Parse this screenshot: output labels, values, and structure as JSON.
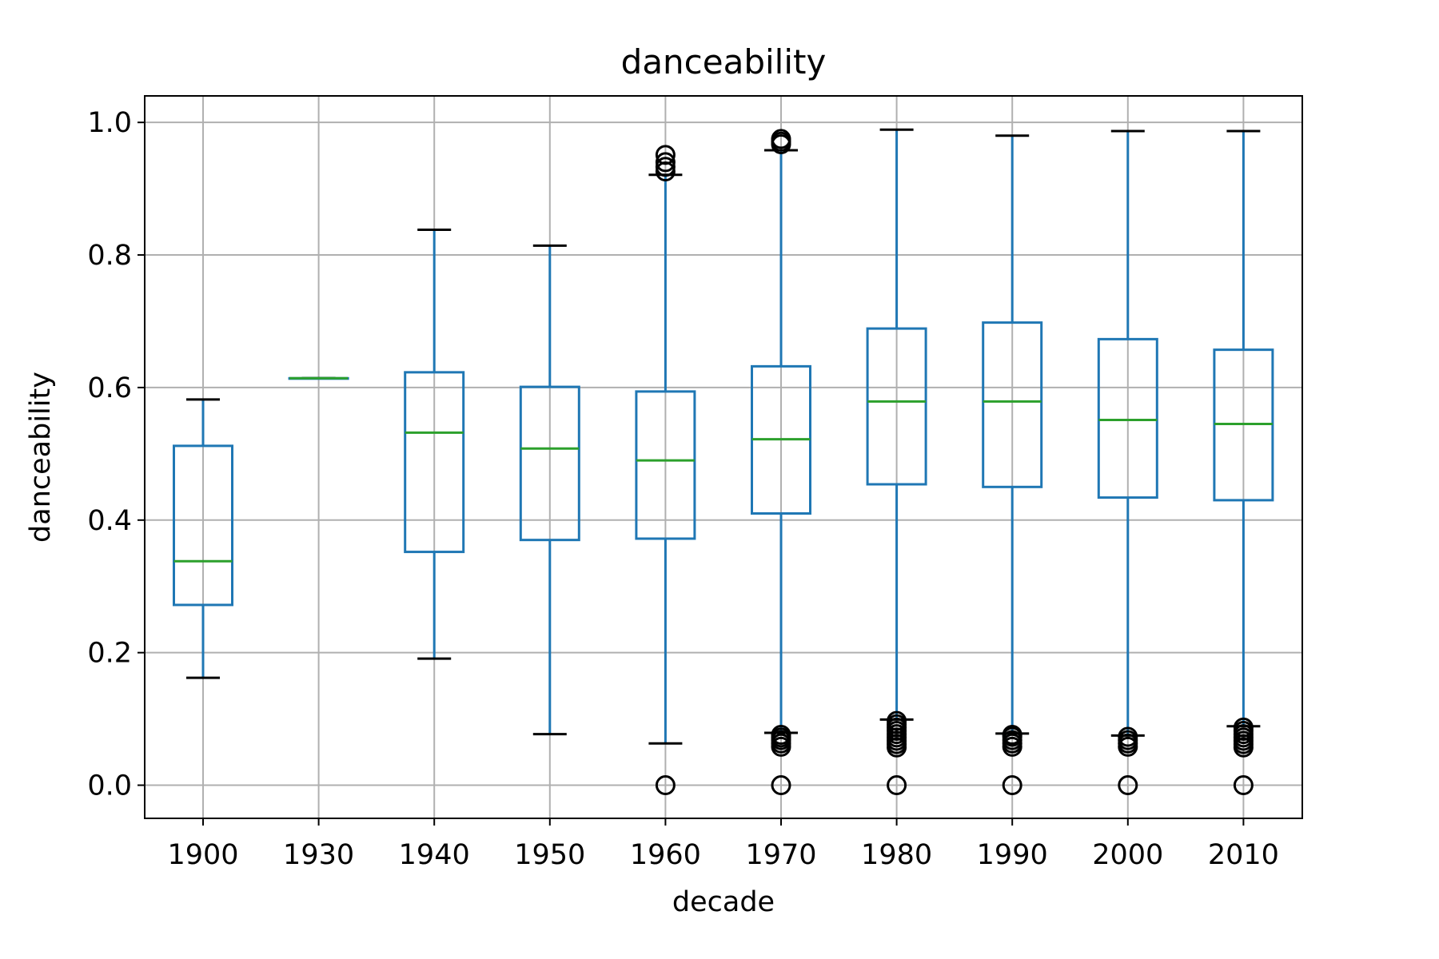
{
  "chart_data": {
    "type": "box",
    "title": "danceability",
    "xlabel": "decade",
    "ylabel": "danceability",
    "ylim": [
      -0.05,
      1.04
    ],
    "yticks": [
      "0.0",
      "0.2",
      "0.4",
      "0.6",
      "0.8",
      "1.0"
    ],
    "grid": true,
    "categories": [
      "1900",
      "1930",
      "1940",
      "1950",
      "1960",
      "1970",
      "1980",
      "1990",
      "2000",
      "2010"
    ],
    "boxes": [
      {
        "decade": "1900",
        "whisker_low": 0.162,
        "q1": 0.272,
        "median": 0.338,
        "q3": 0.512,
        "whisker_high": 0.582,
        "outliers": []
      },
      {
        "decade": "1930",
        "whisker_low": 0.614,
        "q1": 0.614,
        "median": 0.614,
        "q3": 0.614,
        "whisker_high": 0.614,
        "outliers": []
      },
      {
        "decade": "1940",
        "whisker_low": 0.191,
        "q1": 0.352,
        "median": 0.532,
        "q3": 0.623,
        "whisker_high": 0.838,
        "outliers": []
      },
      {
        "decade": "1950",
        "whisker_low": 0.077,
        "q1": 0.37,
        "median": 0.508,
        "q3": 0.601,
        "whisker_high": 0.814,
        "outliers": []
      },
      {
        "decade": "1960",
        "whisker_low": 0.063,
        "q1": 0.372,
        "median": 0.49,
        "q3": 0.594,
        "whisker_high": 0.921,
        "outliers": [
          0.0,
          0.926,
          0.933,
          0.94,
          0.951
        ]
      },
      {
        "decade": "1970",
        "whisker_low": 0.079,
        "q1": 0.41,
        "median": 0.522,
        "q3": 0.632,
        "whisker_high": 0.958,
        "outliers": [
          0.0,
          0.058,
          0.063,
          0.068,
          0.072,
          0.076,
          0.967,
          0.971,
          0.975
        ]
      },
      {
        "decade": "1980",
        "whisker_low": 0.099,
        "q1": 0.454,
        "median": 0.579,
        "q3": 0.689,
        "whisker_high": 0.989,
        "outliers": [
          0.0,
          0.057,
          0.062,
          0.067,
          0.072,
          0.077,
          0.082,
          0.087,
          0.092,
          0.097
        ]
      },
      {
        "decade": "1990",
        "whisker_low": 0.078,
        "q1": 0.45,
        "median": 0.579,
        "q3": 0.698,
        "whisker_high": 0.98,
        "outliers": [
          0.0,
          0.058,
          0.063,
          0.068,
          0.073,
          0.076
        ]
      },
      {
        "decade": "2000",
        "whisker_low": 0.075,
        "q1": 0.434,
        "median": 0.551,
        "q3": 0.673,
        "whisker_high": 0.987,
        "outliers": [
          0.0,
          0.058,
          0.063,
          0.068,
          0.073
        ]
      },
      {
        "decade": "2010",
        "whisker_low": 0.089,
        "q1": 0.43,
        "median": 0.545,
        "q3": 0.657,
        "whisker_high": 0.987,
        "outliers": [
          0.0,
          0.057,
          0.062,
          0.067,
          0.072,
          0.077,
          0.082,
          0.087
        ]
      }
    ],
    "colors": {
      "box": "#1f77b4",
      "median": "#2ca02c",
      "caps": "#000000",
      "grid": "#b0b0b0",
      "outliers": "#000000"
    }
  }
}
